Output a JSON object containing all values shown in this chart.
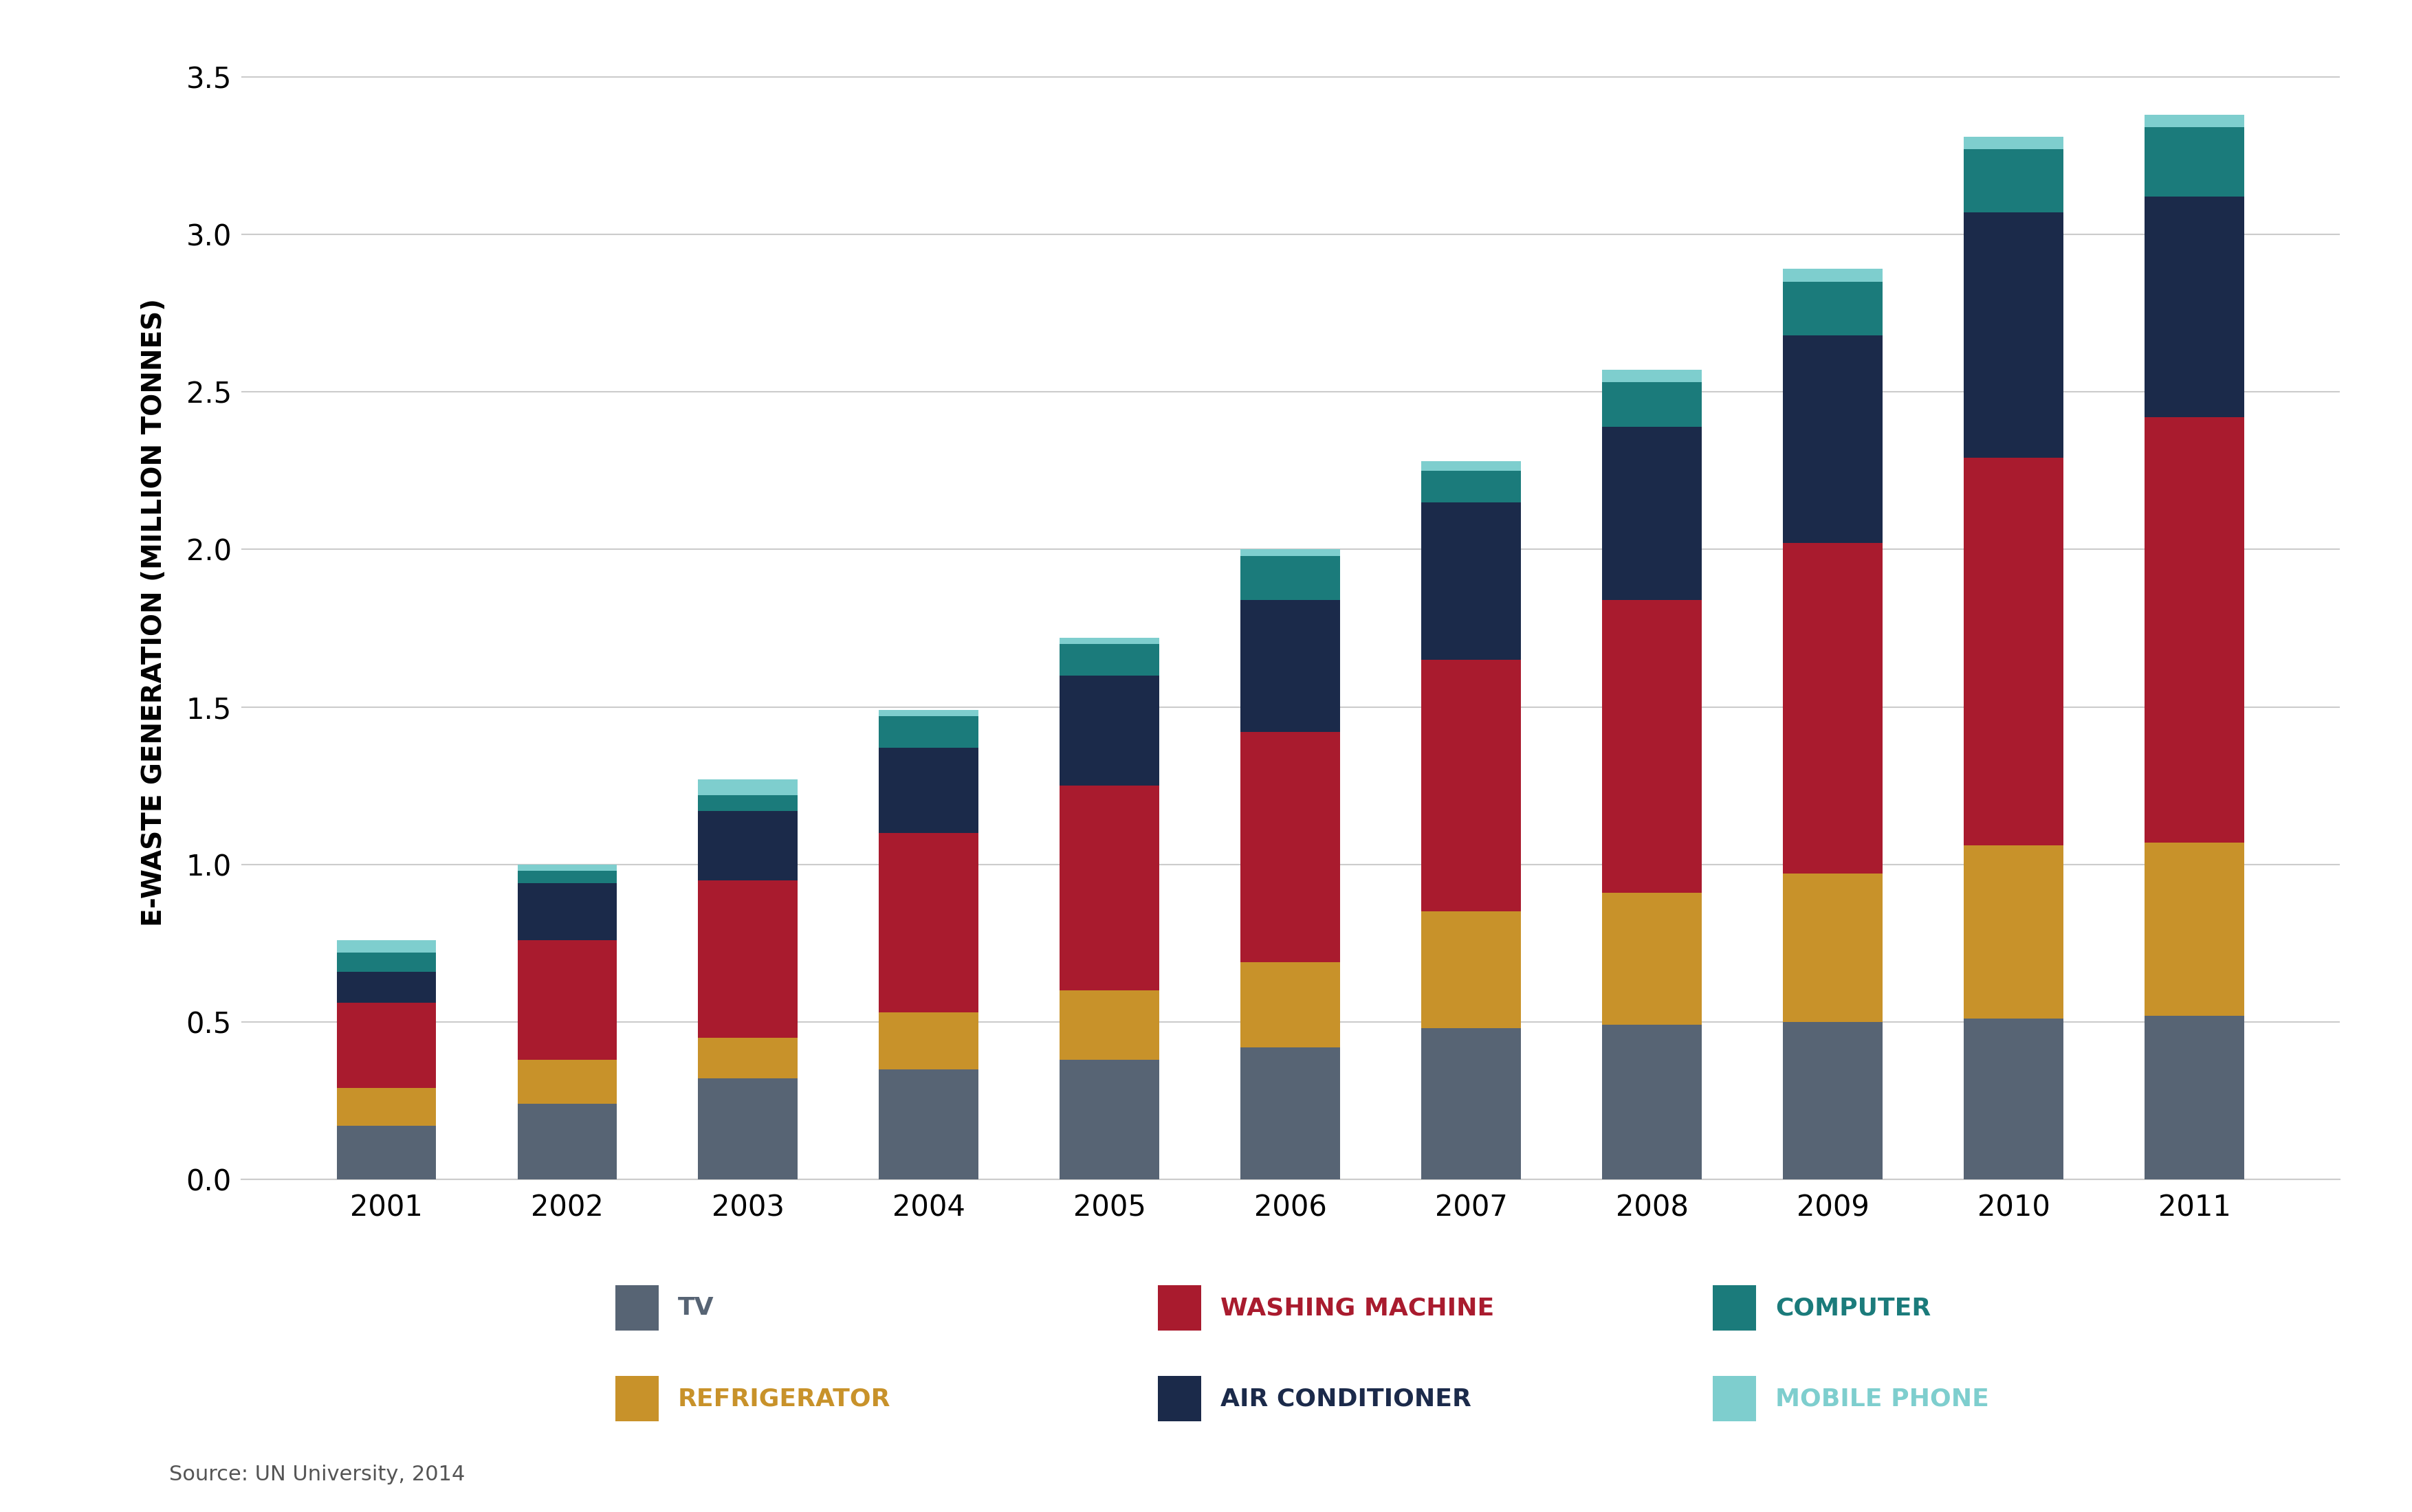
{
  "years": [
    "2001",
    "2002",
    "2003",
    "2004",
    "2005",
    "2006",
    "2007",
    "2008",
    "2009",
    "2010",
    "2011"
  ],
  "tv": [
    0.17,
    0.24,
    0.32,
    0.35,
    0.38,
    0.42,
    0.48,
    0.49,
    0.5,
    0.51,
    0.52
  ],
  "refrigerator": [
    0.12,
    0.14,
    0.13,
    0.18,
    0.22,
    0.27,
    0.37,
    0.42,
    0.47,
    0.55,
    0.55
  ],
  "washing_machine": [
    0.27,
    0.38,
    0.5,
    0.57,
    0.65,
    0.73,
    0.8,
    0.93,
    1.05,
    1.23,
    1.35
  ],
  "air_conditioner": [
    0.1,
    0.18,
    0.22,
    0.27,
    0.35,
    0.42,
    0.5,
    0.55,
    0.66,
    0.78,
    0.7
  ],
  "computer": [
    0.06,
    0.04,
    0.05,
    0.1,
    0.1,
    0.14,
    0.1,
    0.14,
    0.17,
    0.2,
    0.22
  ],
  "mobile_phone": [
    0.04,
    0.02,
    0.05,
    0.02,
    0.02,
    0.02,
    0.03,
    0.04,
    0.04,
    0.04,
    0.04
  ],
  "colors": {
    "tv": "#576474",
    "refrigerator": "#C8922A",
    "washing_machine": "#A91B2E",
    "air_conditioner": "#1B2A4A",
    "computer": "#1B7B7B",
    "mobile_phone": "#7ECECE"
  },
  "ylabel": "E-WASTE GENERATION (MILLION TONNES)",
  "ylim": [
    0,
    3.6
  ],
  "yticks": [
    0.0,
    0.5,
    1.0,
    1.5,
    2.0,
    2.5,
    3.0,
    3.5
  ],
  "source_text": "Source: UN University, 2014",
  "background_color": "#FFFFFF",
  "grid_color": "#CCCCCC",
  "label_fontsize": 28,
  "tick_fontsize": 30,
  "legend_fontsize": 26
}
